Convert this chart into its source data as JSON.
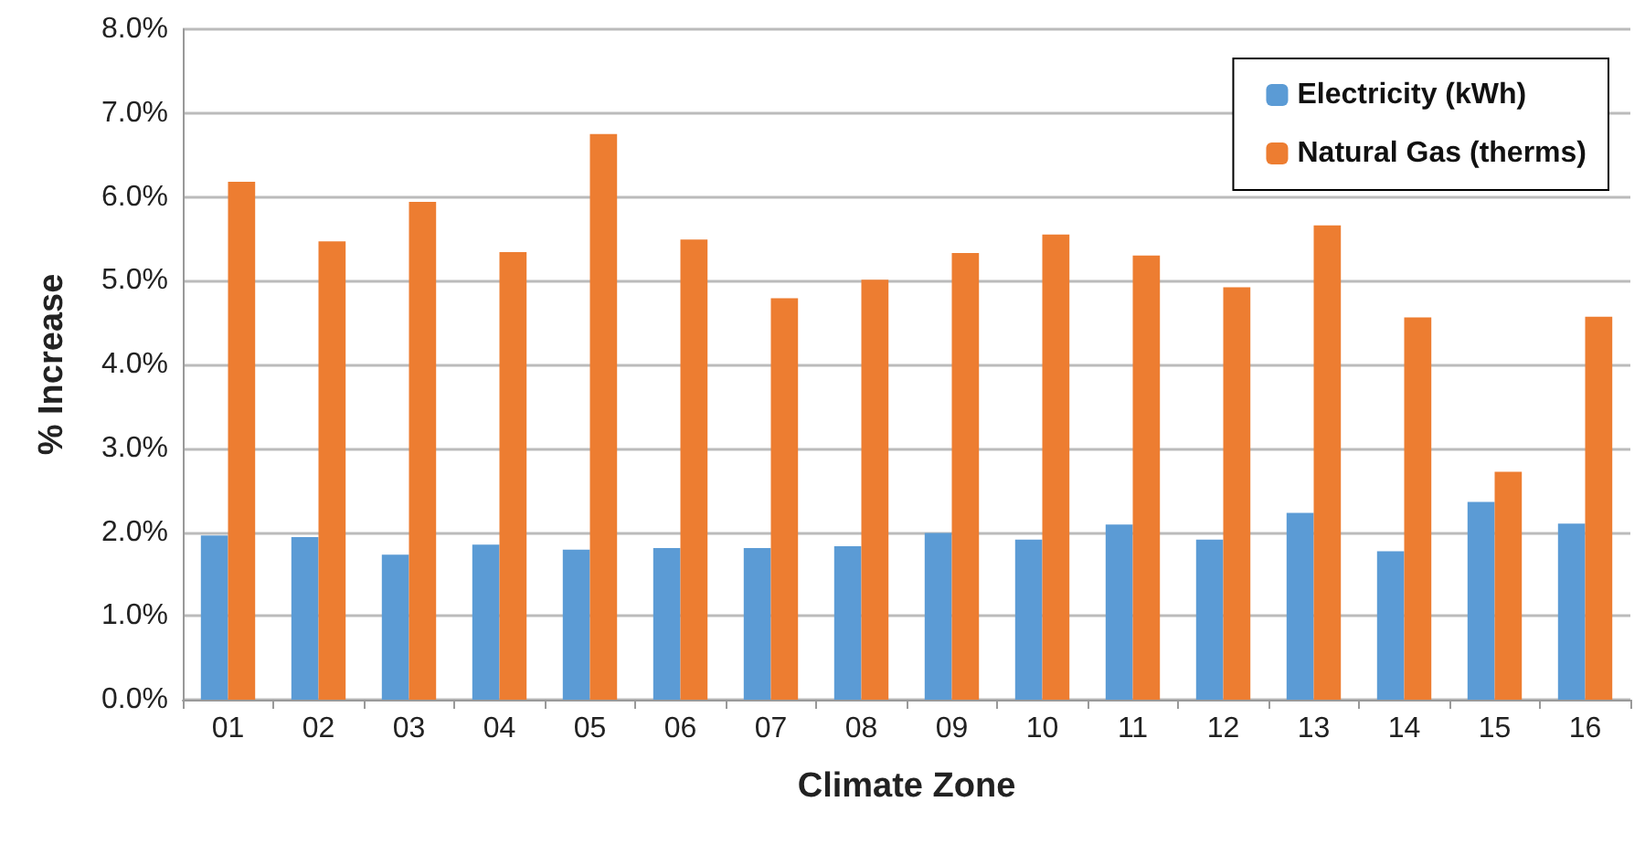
{
  "chart_data": {
    "type": "bar",
    "xlabel": "Climate Zone",
    "ylabel": "% Increase",
    "categories": [
      "01",
      "02",
      "03",
      "04",
      "05",
      "06",
      "07",
      "08",
      "09",
      "10",
      "11",
      "12",
      "13",
      "14",
      "15",
      "16"
    ],
    "series": [
      {
        "name": "Electricity (kWh)",
        "color": "#5b9bd5",
        "values": [
          1.96,
          1.94,
          1.73,
          1.85,
          1.79,
          1.81,
          1.81,
          1.83,
          1.99,
          1.91,
          2.09,
          1.91,
          2.23,
          1.77,
          2.36,
          2.1
        ]
      },
      {
        "name": "Natural Gas (therms)",
        "color": "#ed7d31",
        "values": [
          6.18,
          5.47,
          5.94,
          5.34,
          6.75,
          5.49,
          4.79,
          5.01,
          5.33,
          5.55,
          5.3,
          4.92,
          5.66,
          4.56,
          2.72,
          4.57
        ]
      }
    ],
    "ylim": [
      0,
      8
    ],
    "yticks": [
      {
        "value": 0,
        "label": "0.0%"
      },
      {
        "value": 1,
        "label": "1.0%"
      },
      {
        "value": 2,
        "label": "2.0%"
      },
      {
        "value": 3,
        "label": "3.0%"
      },
      {
        "value": 4,
        "label": "4.0%"
      },
      {
        "value": 5,
        "label": "5.0%"
      },
      {
        "value": 6,
        "label": "6.0%"
      },
      {
        "value": 7,
        "label": "7.0%"
      },
      {
        "value": 8,
        "label": "8.0%"
      }
    ],
    "grid": "y",
    "legend": "top right"
  }
}
